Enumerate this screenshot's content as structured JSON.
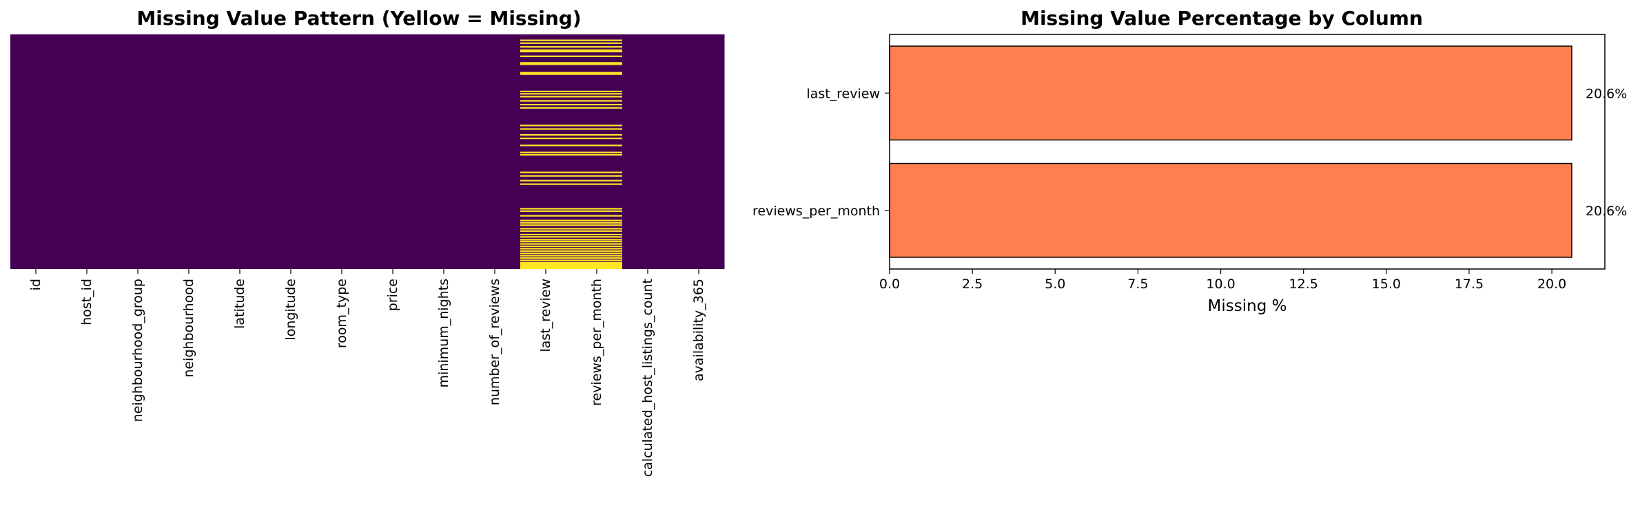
{
  "chart_data": [
    {
      "type": "heatmap",
      "title": "Missing Value Pattern (Yellow = Missing)",
      "columns": [
        "id",
        "host_id",
        "neighbourhood_group",
        "neighbourhood",
        "latitude",
        "longitude",
        "room_type",
        "price",
        "minimum_nights",
        "number_of_reviews",
        "last_review",
        "reviews_per_month",
        "calculated_host_listings_count",
        "availability_365"
      ],
      "missing_columns": [
        "last_review",
        "reviews_per_month"
      ],
      "missing_row_fractions": [
        0.022,
        0.034,
        0.05,
        0.064,
        0.07,
        0.09,
        0.118,
        0.124,
        0.16,
        0.166,
        0.24,
        0.25,
        0.262,
        0.28,
        0.296,
        0.31,
        0.385,
        0.4,
        0.425,
        0.44,
        0.47,
        0.5,
        0.51,
        0.585,
        0.6,
        0.62,
        0.635,
        0.74,
        0.75,
        0.77,
        0.79,
        0.8,
        0.81,
        0.825,
        0.835,
        0.85,
        0.86,
        0.872,
        0.88,
        0.89,
        0.9,
        0.91,
        0.92,
        0.93,
        0.94,
        0.95,
        0.96,
        0.97,
        0.98,
        0.99
      ],
      "colors": {
        "present": "#440154",
        "missing": "#fde725"
      }
    },
    {
      "type": "bar",
      "orientation": "horizontal",
      "title": "Missing Value Percentage by Column",
      "categories": [
        "last_review",
        "reviews_per_month"
      ],
      "values": [
        20.6,
        20.6
      ],
      "data_labels": [
        "20.6%",
        "20.6%"
      ],
      "xlabel": "Missing %",
      "ylabel": "",
      "xlim": [
        0,
        21.6
      ],
      "xticks": [
        "0.0",
        "2.5",
        "5.0",
        "7.5",
        "10.0",
        "12.5",
        "15.0",
        "17.5",
        "20.0"
      ],
      "grid": false,
      "bar_color": "#ff7f50",
      "edge_color": "#000000"
    }
  ]
}
